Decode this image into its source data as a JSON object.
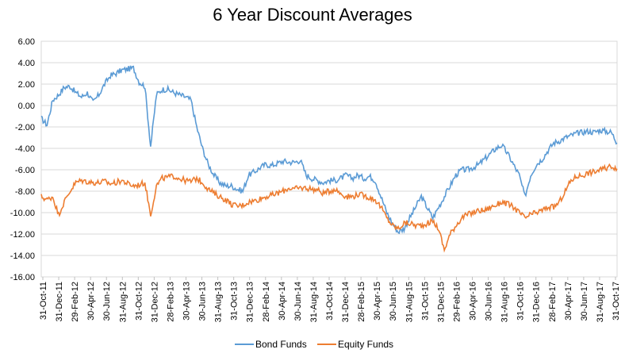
{
  "chart_data": {
    "type": "line",
    "title": "6 Year Discount Averages",
    "xlabel": "",
    "ylabel": "",
    "ylim": [
      -16,
      6
    ],
    "yticks": [
      6,
      4,
      2,
      0,
      -2,
      -4,
      -6,
      -8,
      -10,
      -12,
      -14,
      -16
    ],
    "ytick_labels": [
      "6.00",
      "4.00",
      "2.00",
      "0.00",
      "-2.00",
      "-4.00",
      "-6.00",
      "-8.00",
      "-10.00",
      "-12.00",
      "-14.00",
      "-16.00"
    ],
    "x_tick_labels": [
      "31-Oct-11",
      "31-Dec-11",
      "29-Feb-12",
      "30-Apr-12",
      "30-Jun-12",
      "31-Aug-12",
      "31-Oct-12",
      "31-Dec-12",
      "28-Feb-13",
      "30-Apr-13",
      "30-Jun-13",
      "31-Aug-13",
      "31-Oct-13",
      "31-Dec-13",
      "28-Feb-14",
      "30-Apr-14",
      "30-Jun-14",
      "31-Aug-14",
      "31-Oct-14",
      "31-Dec-14",
      "28-Feb-15",
      "30-Apr-15",
      "30-Jun-15",
      "31-Aug-15",
      "31-Oct-15",
      "31-Dec-15",
      "29-Feb-16",
      "30-Apr-16",
      "30-Jun-16",
      "31-Aug-16",
      "31-Oct-16",
      "31-Dec-16",
      "28-Feb-17",
      "30-Apr-17",
      "30-Jun-17",
      "31-Aug-17",
      "31-Oct-17"
    ],
    "grid": true,
    "legend_position": "bottom",
    "series": [
      {
        "name": "Bond Funds",
        "color": "#5b9bd5",
        "values": [
          -1.2,
          -1.8,
          0.5,
          1.0,
          1.7,
          1.8,
          1.2,
          0.8,
          1.2,
          0.3,
          1.0,
          2.0,
          2.8,
          3.0,
          3.3,
          3.4,
          3.5,
          2.2,
          1.8,
          -3.8,
          1.0,
          1.5,
          1.5,
          1.2,
          1.0,
          0.8,
          0.5,
          -2.0,
          -4.0,
          -5.5,
          -6.5,
          -7.2,
          -7.5,
          -7.5,
          -7.8,
          -8.0,
          -6.5,
          -6.2,
          -5.8,
          -5.5,
          -5.6,
          -5.4,
          -5.2,
          -5.3,
          -5.3,
          -5.1,
          -6.5,
          -6.8,
          -7.0,
          -7.2,
          -7.0,
          -7.0,
          -6.8,
          -6.5,
          -6.8,
          -6.5,
          -6.8,
          -6.6,
          -7.0,
          -8.5,
          -10.0,
          -11.0,
          -11.8,
          -11.5,
          -10.5,
          -9.5,
          -8.5,
          -9.5,
          -10.5,
          -9.5,
          -8.5,
          -7.5,
          -6.5,
          -6.0,
          -6.0,
          -5.8,
          -5.5,
          -5.0,
          -4.5,
          -4.0,
          -3.7,
          -4.5,
          -5.5,
          -6.5,
          -8.5,
          -6.5,
          -5.5,
          -5.0,
          -4.2,
          -3.5,
          -3.3,
          -3.0,
          -2.8,
          -2.6,
          -2.5,
          -2.4,
          -2.5,
          -2.3,
          -2.4,
          -2.5,
          -3.5
        ]
      },
      {
        "name": "Equity Funds",
        "color": "#ed7d31",
        "values": [
          -8.5,
          -8.8,
          -8.5,
          -10.2,
          -9.0,
          -8.0,
          -7.2,
          -7.0,
          -7.1,
          -7.2,
          -7.2,
          -7.1,
          -7.3,
          -7.2,
          -7.0,
          -7.3,
          -7.5,
          -7.4,
          -7.2,
          -10.2,
          -7.5,
          -6.8,
          -6.7,
          -6.6,
          -6.8,
          -7.0,
          -7.1,
          -6.8,
          -7.2,
          -7.8,
          -8.2,
          -8.5,
          -8.8,
          -9.2,
          -9.4,
          -9.3,
          -9.0,
          -8.9,
          -8.7,
          -8.5,
          -8.4,
          -8.2,
          -8.0,
          -7.7,
          -7.8,
          -7.7,
          -7.7,
          -7.8,
          -7.9,
          -8.2,
          -8.0,
          -7.8,
          -8.2,
          -8.5,
          -8.5,
          -8.3,
          -8.4,
          -8.6,
          -8.8,
          -9.5,
          -10.5,
          -11.2,
          -11.5,
          -11.0,
          -11.0,
          -11.2,
          -11.2,
          -11.0,
          -10.8,
          -11.5,
          -13.5,
          -12.0,
          -11.2,
          -10.5,
          -10.2,
          -10.0,
          -9.8,
          -9.8,
          -9.5,
          -9.3,
          -9.0,
          -9.2,
          -9.5,
          -10.0,
          -10.5,
          -10.2,
          -10.0,
          -9.8,
          -9.5,
          -9.5,
          -9.0,
          -8.0,
          -7.0,
          -6.6,
          -6.5,
          -6.3,
          -6.2,
          -6.0,
          -5.9,
          -5.6,
          -5.9
        ]
      }
    ]
  }
}
